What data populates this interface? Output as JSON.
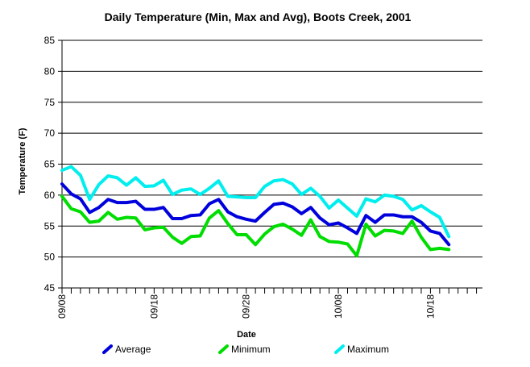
{
  "chart_data": {
    "type": "line",
    "title": "Daily Temperature (Min, Max and Avg), Boots Creek, 2001",
    "xlabel": "Date",
    "ylabel": "Temperature (F)",
    "ylim": [
      45,
      85
    ],
    "y_ticks": [
      45,
      50,
      55,
      60,
      65,
      70,
      75,
      80,
      85
    ],
    "x_tick_labels": [
      "09/08",
      "09/18",
      "09/28",
      "10/08",
      "10/18"
    ],
    "x_tick_label_index": [
      0,
      10,
      20,
      30,
      40
    ],
    "num_minor_ticks": 47,
    "grid": true,
    "legend_position": "bottom",
    "x": [
      "09/08",
      "09/09",
      "09/10",
      "09/11",
      "09/12",
      "09/13",
      "09/14",
      "09/15",
      "09/16",
      "09/17",
      "09/18",
      "09/19",
      "09/20",
      "09/21",
      "09/22",
      "09/23",
      "09/24",
      "09/25",
      "09/26",
      "09/27",
      "09/28",
      "09/29",
      "09/30",
      "10/01",
      "10/02",
      "10/03",
      "10/04",
      "10/05",
      "10/06",
      "10/07",
      "10/08",
      "10/09",
      "10/10",
      "10/11",
      "10/12",
      "10/13",
      "10/14",
      "10/15",
      "10/16",
      "10/17",
      "10/18",
      "10/19",
      "10/20"
    ],
    "series": [
      {
        "name": "Average",
        "color": "#0000dd",
        "values": [
          61.8,
          60.2,
          59.4,
          57.2,
          58.0,
          59.3,
          58.8,
          58.8,
          59.0,
          57.7,
          57.7,
          58.0,
          56.2,
          56.2,
          56.7,
          56.8,
          58.6,
          59.3,
          57.3,
          56.5,
          56.1,
          55.8,
          57.2,
          58.5,
          58.7,
          58.1,
          57.0,
          58.0,
          56.3,
          55.2,
          55.5,
          54.7,
          53.8,
          56.7,
          55.6,
          56.8,
          56.8,
          56.5,
          56.5,
          55.6,
          54.2,
          53.8,
          52.0
        ]
      },
      {
        "name": "Minimum",
        "color": "#00dd00",
        "values": [
          59.8,
          57.8,
          57.3,
          55.6,
          55.8,
          57.2,
          56.1,
          56.4,
          56.3,
          54.4,
          54.7,
          54.8,
          53.2,
          52.2,
          53.3,
          53.4,
          56.3,
          57.5,
          55.4,
          53.6,
          53.6,
          52.0,
          53.7,
          54.9,
          55.3,
          54.5,
          53.5,
          56.0,
          53.3,
          52.5,
          52.4,
          52.1,
          50.2,
          55.3,
          53.4,
          54.3,
          54.2,
          53.8,
          55.8,
          53.2,
          51.2,
          51.4,
          51.2
        ]
      },
      {
        "name": "Maximum",
        "color": "#00eeee",
        "values": [
          64.0,
          64.6,
          63.2,
          59.3,
          61.7,
          63.1,
          62.8,
          61.6,
          62.8,
          61.4,
          61.5,
          62.4,
          60.1,
          60.8,
          61.0,
          60.1,
          61.1,
          62.3,
          59.8,
          59.7,
          59.6,
          59.6,
          61.4,
          62.3,
          62.5,
          61.8,
          60.1,
          61.1,
          59.8,
          57.9,
          59.2,
          57.9,
          56.6,
          59.4,
          58.9,
          60.0,
          59.8,
          59.3,
          57.6,
          58.3,
          57.3,
          56.4,
          53.3
        ]
      }
    ]
  }
}
